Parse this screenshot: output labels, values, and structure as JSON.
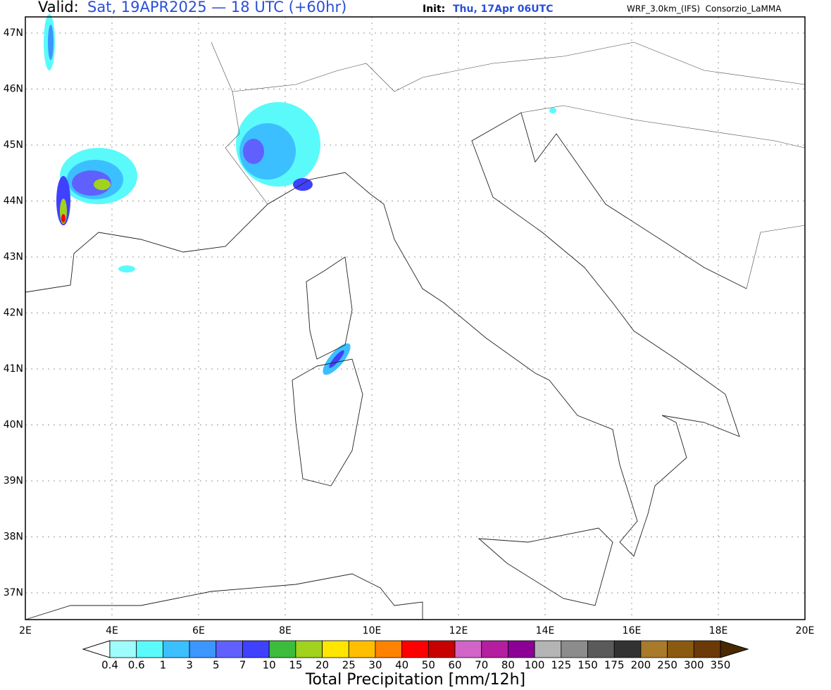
{
  "header": {
    "valid_label": "Valid:",
    "valid_time": "Sat, 19APR2025 — 18 UTC (+60hr)",
    "init_label": "Init:",
    "init_time": "Thu, 17Apr 06UTC",
    "model": "WRF_3.0km_(IFS)  Consorzio_LaMMA"
  },
  "map": {
    "lat_ticks": [
      "47N",
      "46N",
      "45N",
      "44N",
      "43N",
      "42N",
      "41N",
      "40N",
      "39N",
      "38N",
      "37N"
    ],
    "lon_ticks": [
      "2E",
      "4E",
      "6E",
      "8E",
      "10E",
      "12E",
      "14E",
      "16E",
      "18E",
      "20E"
    ]
  },
  "colorbar": {
    "title": "Total Precipitation [mm/12h]",
    "labels": [
      "0.4",
      "0.6",
      "1",
      "3",
      "5",
      "7",
      "10",
      "15",
      "20",
      "25",
      "30",
      "40",
      "50",
      "60",
      "70",
      "80",
      "100",
      "125",
      "150",
      "175",
      "200",
      "250",
      "300",
      "350"
    ],
    "colors": [
      "#9ffcfc",
      "#5afafa",
      "#3cbfff",
      "#3c96ff",
      "#6060ff",
      "#4040ff",
      "#3cbc3c",
      "#a0d21e",
      "#ffe600",
      "#ffbe00",
      "#ff8200",
      "#ff0000",
      "#c80000",
      "#d264c8",
      "#b41ea0",
      "#8c0096",
      "#b4b4b4",
      "#8c8c8c",
      "#5a5a5a",
      "#323232",
      "#a87a2a",
      "#8a5a10",
      "#6b3a08"
    ],
    "under_color": "#ffffff",
    "over_color": "#4a2800"
  }
}
